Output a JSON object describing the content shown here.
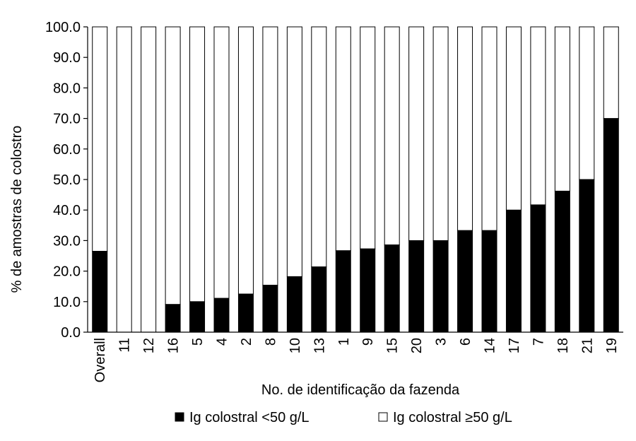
{
  "chart_data": {
    "type": "bar",
    "stacked": true,
    "categories": [
      "Overall",
      "11",
      "12",
      "16",
      "5",
      "4",
      "2",
      "8",
      "10",
      "13",
      "1",
      "9",
      "15",
      "20",
      "3",
      "6",
      "14",
      "17",
      "7",
      "18",
      "21",
      "19"
    ],
    "series": [
      {
        "name": "Ig colostral  <50 g/L",
        "color": "#000000",
        "values": [
          26.5,
          0,
          0,
          9.1,
          10.0,
          11.1,
          12.5,
          15.4,
          18.2,
          21.4,
          26.7,
          27.3,
          28.6,
          30.0,
          30.0,
          33.3,
          33.3,
          40.0,
          41.7,
          46.2,
          50.0,
          70.0
        ]
      },
      {
        "name": "Ig colostral  ≥50 g/L",
        "color": "#ffffff",
        "values": [
          73.5,
          100,
          100,
          90.9,
          90.0,
          88.9,
          87.5,
          84.6,
          81.8,
          78.6,
          73.3,
          72.7,
          71.4,
          70.0,
          70.0,
          66.7,
          66.7,
          60.0,
          58.3,
          53.8,
          50.0,
          30.0
        ]
      }
    ],
    "yticks": [
      "0.0",
      "10.0",
      "20.0",
      "30.0",
      "40.0",
      "50.0",
      "60.0",
      "70.0",
      "80.0",
      "90.0",
      "100.0"
    ],
    "ylim": [
      0,
      100
    ],
    "xlabel": "No. de identificação da fazenda",
    "ylabel": "% de amostras de colostro",
    "legend": {
      "position": "bottom",
      "items": [
        {
          "label": "Ig colostral  <50 g/L",
          "color": "#000000"
        },
        {
          "label": "Ig colostral  ≥50 g/L",
          "color": "#ffffff"
        }
      ]
    },
    "grid": false
  }
}
